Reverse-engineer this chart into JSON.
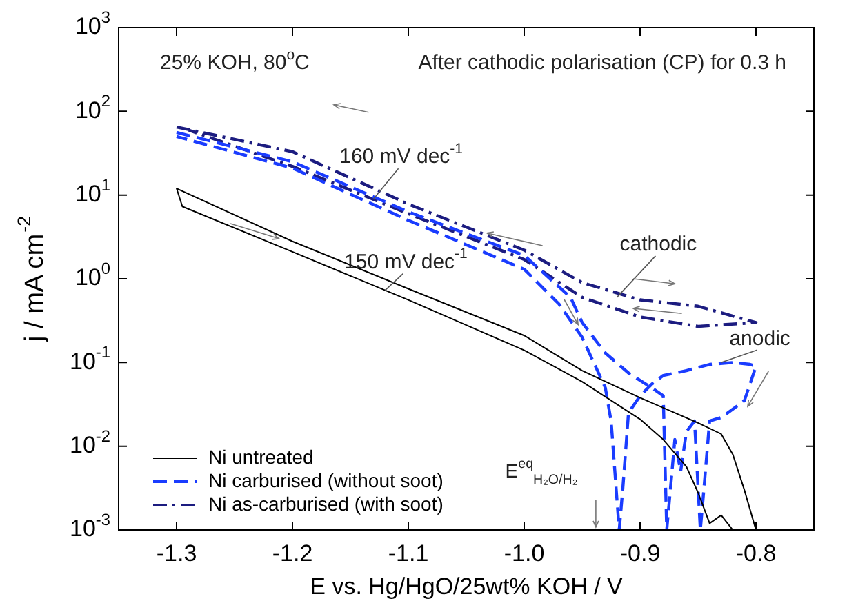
{
  "chart_data": {
    "type": "line",
    "xlabel": "E vs. Hg/HgO/25wt% KOH / V",
    "ylabel": "j / mA cm$^{-2}$",
    "log": "y",
    "legend": "bottom left",
    "marker": "none",
    "xlim": [
      -1.35,
      -0.75
    ],
    "ylim": [
      0.001,
      1000
    ],
    "xticks": [
      -1.3,
      -1.2,
      -1.1,
      {
        "value": -1,
        "label": "-1.0"
      },
      -0.9,
      -0.8
    ],
    "yticks": [
      {
        "value": 0.001,
        "label": "10$^{-3}$"
      },
      {
        "value": 0.01,
        "label": "10$^{-2}$"
      },
      {
        "value": 0.1,
        "label": "10$^{-1}$"
      },
      {
        "value": 1,
        "label": "10$^{0}$"
      },
      {
        "value": 10,
        "label": "10$^{1}$"
      },
      {
        "value": 100,
        "label": "10$^{2}$"
      },
      {
        "value": 1000,
        "label": "10$^{3}$"
      }
    ],
    "series": [
      {
        "name": "Ni untreated",
        "color": "#000000",
        "line_style": "solid",
        "x": [
          -0.82,
          -0.83,
          -0.84,
          -0.85,
          -0.86,
          -0.88,
          -0.9,
          -0.95,
          -1.0,
          -1.1,
          -1.2,
          -1.295,
          -1.3,
          -1.2,
          -1.1,
          -1.0,
          -0.95,
          -0.9,
          -0.85,
          -0.83,
          -0.82,
          -0.81,
          -0.8
        ],
        "values": [
          0.001,
          0.0015,
          0.0012,
          0.0028,
          0.0057,
          0.012,
          0.021,
          0.059,
          0.14,
          0.56,
          2.1,
          7.3,
          12,
          2.8,
          0.76,
          0.21,
          0.08,
          0.038,
          0.019,
          0.014,
          0.008,
          0.003,
          0.001
        ]
      },
      {
        "name": "Ni carburised (without soot)",
        "color": "#1a3cff",
        "line_style": "dashed",
        "x": [
          -1.3,
          -1.2,
          -1.1,
          -1.0,
          -0.96,
          -0.95,
          -0.93,
          -0.91,
          -0.89,
          -0.88,
          -0.877,
          -0.87,
          -0.865,
          -0.86,
          -0.853,
          -0.848,
          -0.845,
          -0.84,
          -0.83,
          -0.81,
          -0.8,
          -0.805,
          -0.82,
          -0.84,
          -0.86,
          -0.88,
          -0.89,
          -0.9,
          -0.91,
          -0.915,
          -0.918,
          -0.925,
          -0.93,
          -0.94,
          -0.95,
          -0.97,
          -1.0,
          -1.1,
          -1.2,
          -1.3
        ],
        "values": [
          56,
          25,
          6.3,
          1.9,
          0.6,
          0.3,
          0.13,
          0.075,
          0.05,
          0.04,
          0.001,
          0.012,
          0.005,
          0.015,
          0.02,
          0.001,
          0.003,
          0.02,
          0.022,
          0.035,
          0.09,
          0.095,
          0.1,
          0.095,
          0.08,
          0.07,
          0.055,
          0.04,
          0.025,
          0.003,
          0.001,
          0.02,
          0.05,
          0.1,
          0.2,
          0.5,
          1.3,
          5,
          21,
          50
        ]
      },
      {
        "name": "Ni as-carburised (with soot)",
        "color": "#1c1c80",
        "line_style": "dashdot",
        "x": [
          -1.3,
          -1.2,
          -1.1,
          -1.0,
          -0.95,
          -0.9,
          -0.85,
          -0.8,
          -0.85,
          -0.9,
          -0.95,
          -1.0,
          -1.1,
          -1.2,
          -1.29
        ],
        "values": [
          65,
          33,
          7.8,
          2.2,
          0.9,
          0.56,
          0.47,
          0.3,
          0.27,
          0.35,
          0.6,
          1.7,
          6,
          22,
          60
        ]
      }
    ],
    "annotations": [
      "25% KOH, 80$^{o}$C",
      "After cathodic polarisation (CP) for 0.3 h",
      {
        "text": "160 mV dec$^{-1}$",
        "x": -1.13,
        "y": 9
      },
      {
        "text": "150 mV dec$^{-1}$",
        "x": -1.12,
        "y": 0.73
      },
      {
        "text": "cathodic",
        "x": -0.92,
        "y": 0.6
      },
      {
        "text": "anodic",
        "x": -0.83,
        "y": 0.1
      },
      "E$^{eq}$$_{H₂O/H₂}$"
    ]
  }
}
